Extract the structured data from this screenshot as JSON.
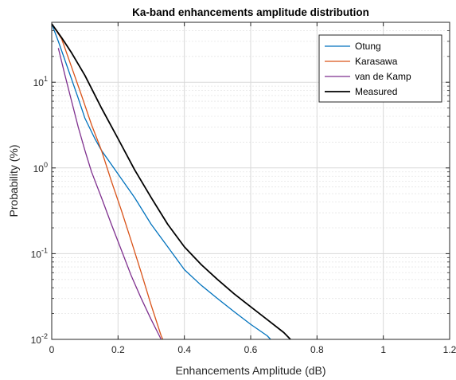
{
  "chart_data": {
    "type": "line",
    "title": "Ka-band enhancements amplitude distribution",
    "xlabel": "Enhancements Amplitude (dB)",
    "ylabel": "Probability (%)",
    "xlim": [
      0,
      1.2
    ],
    "ylim": [
      0.01,
      50
    ],
    "yscale": "log",
    "grid": true,
    "legend_position": "top-right",
    "x_ticks": [
      "0",
      "0.2",
      "0.4",
      "0.6",
      "0.8",
      "1",
      "1.2"
    ],
    "x_tick_values": [
      0,
      0.2,
      0.4,
      0.6,
      0.8,
      1.0,
      1.2
    ],
    "y_ticks": [
      {
        "value": 0.01,
        "base": "10",
        "exp": "-2"
      },
      {
        "value": 0.1,
        "base": "10",
        "exp": "-1"
      },
      {
        "value": 1,
        "base": "10",
        "exp": "0"
      },
      {
        "value": 10,
        "base": "10",
        "exp": "1"
      }
    ],
    "series": [
      {
        "name": "Otung",
        "color": "#0072BD",
        "points": [
          [
            0.0,
            48
          ],
          [
            0.02,
            30
          ],
          [
            0.05,
            14
          ],
          [
            0.08,
            6.5
          ],
          [
            0.1,
            3.8
          ],
          [
            0.13,
            2.2
          ],
          [
            0.15,
            1.6
          ],
          [
            0.2,
            0.85
          ],
          [
            0.25,
            0.45
          ],
          [
            0.3,
            0.22
          ],
          [
            0.35,
            0.12
          ],
          [
            0.4,
            0.065
          ],
          [
            0.45,
            0.043
          ],
          [
            0.5,
            0.03
          ],
          [
            0.55,
            0.021
          ],
          [
            0.6,
            0.015
          ],
          [
            0.65,
            0.011
          ],
          [
            0.66,
            0.01
          ]
        ]
      },
      {
        "name": "Karasawa",
        "color": "#D95319",
        "points": [
          [
            0.0,
            48
          ],
          [
            0.03,
            32
          ],
          [
            0.06,
            15
          ],
          [
            0.09,
            7
          ],
          [
            0.12,
            3.2
          ],
          [
            0.15,
            1.6
          ],
          [
            0.18,
            0.7
          ],
          [
            0.21,
            0.32
          ],
          [
            0.24,
            0.14
          ],
          [
            0.27,
            0.06
          ],
          [
            0.3,
            0.025
          ],
          [
            0.33,
            0.011
          ],
          [
            0.335,
            0.01
          ]
        ]
      },
      {
        "name": "van de Kamp",
        "color": "#7E2F8E",
        "points": [
          [
            0.02,
            25
          ],
          [
            0.04,
            12
          ],
          [
            0.06,
            6
          ],
          [
            0.08,
            3
          ],
          [
            0.1,
            1.6
          ],
          [
            0.12,
            0.9
          ],
          [
            0.15,
            0.45
          ],
          [
            0.18,
            0.22
          ],
          [
            0.21,
            0.11
          ],
          [
            0.24,
            0.055
          ],
          [
            0.27,
            0.03
          ],
          [
            0.3,
            0.017
          ],
          [
            0.33,
            0.01
          ]
        ]
      },
      {
        "name": "Measured",
        "color": "#000000",
        "points": [
          [
            0.0,
            48
          ],
          [
            0.03,
            33
          ],
          [
            0.06,
            22
          ],
          [
            0.1,
            12
          ],
          [
            0.15,
            5
          ],
          [
            0.2,
            2.2
          ],
          [
            0.25,
            0.95
          ],
          [
            0.3,
            0.45
          ],
          [
            0.35,
            0.22
          ],
          [
            0.4,
            0.12
          ],
          [
            0.45,
            0.075
          ],
          [
            0.5,
            0.05
          ],
          [
            0.55,
            0.034
          ],
          [
            0.6,
            0.024
          ],
          [
            0.65,
            0.017
          ],
          [
            0.7,
            0.012
          ],
          [
            0.72,
            0.01
          ]
        ]
      }
    ]
  }
}
